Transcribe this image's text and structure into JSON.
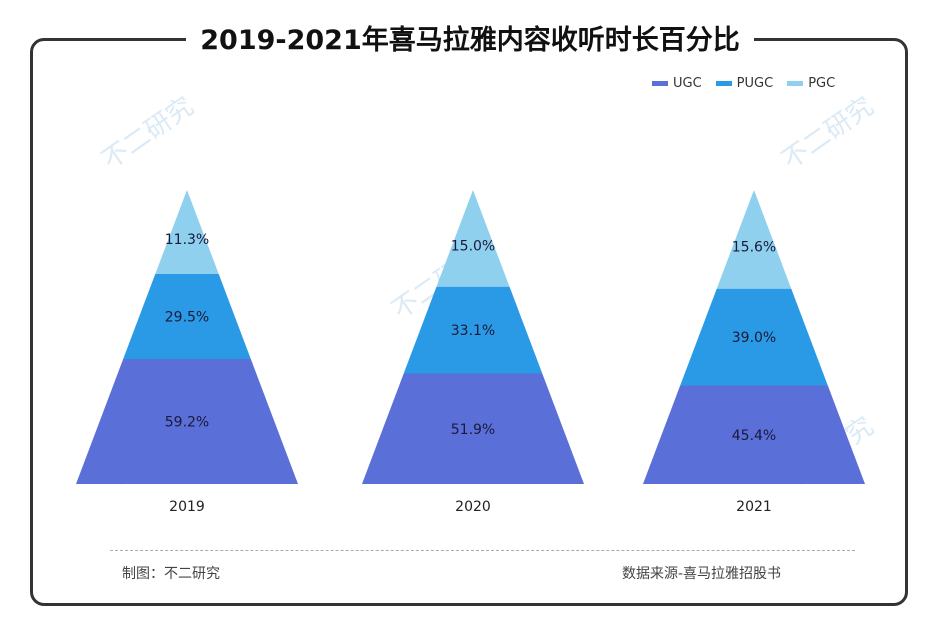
{
  "title": "2019-2021年喜马拉雅内容收听时长百分比",
  "footer": {
    "left": "制图：不二研究",
    "right": "数据来源-喜马拉雅招股书"
  },
  "watermark": "不二研究",
  "chart_data": {
    "type": "pyramid",
    "title": "2019-2021年喜马拉雅内容收听时长百分比",
    "categories": [
      "2019",
      "2020",
      "2021"
    ],
    "legend_position": "top-right",
    "series": [
      {
        "name": "UGC",
        "color": "#5a6fd8",
        "values": [
          59.2,
          51.9,
          45.4
        ],
        "labels": [
          "59.2%",
          "51.9%",
          "45.4%"
        ]
      },
      {
        "name": "PUGC",
        "color": "#2a9ae6",
        "values": [
          29.5,
          33.1,
          39.0
        ],
        "labels": [
          "29.5%",
          "33.1%",
          "39.0%"
        ]
      },
      {
        "name": "PGC",
        "color": "#8fd0ef",
        "values": [
          11.3,
          15.0,
          15.6
        ],
        "labels": [
          "11.3%",
          "15.0%",
          "15.6%"
        ]
      }
    ]
  }
}
